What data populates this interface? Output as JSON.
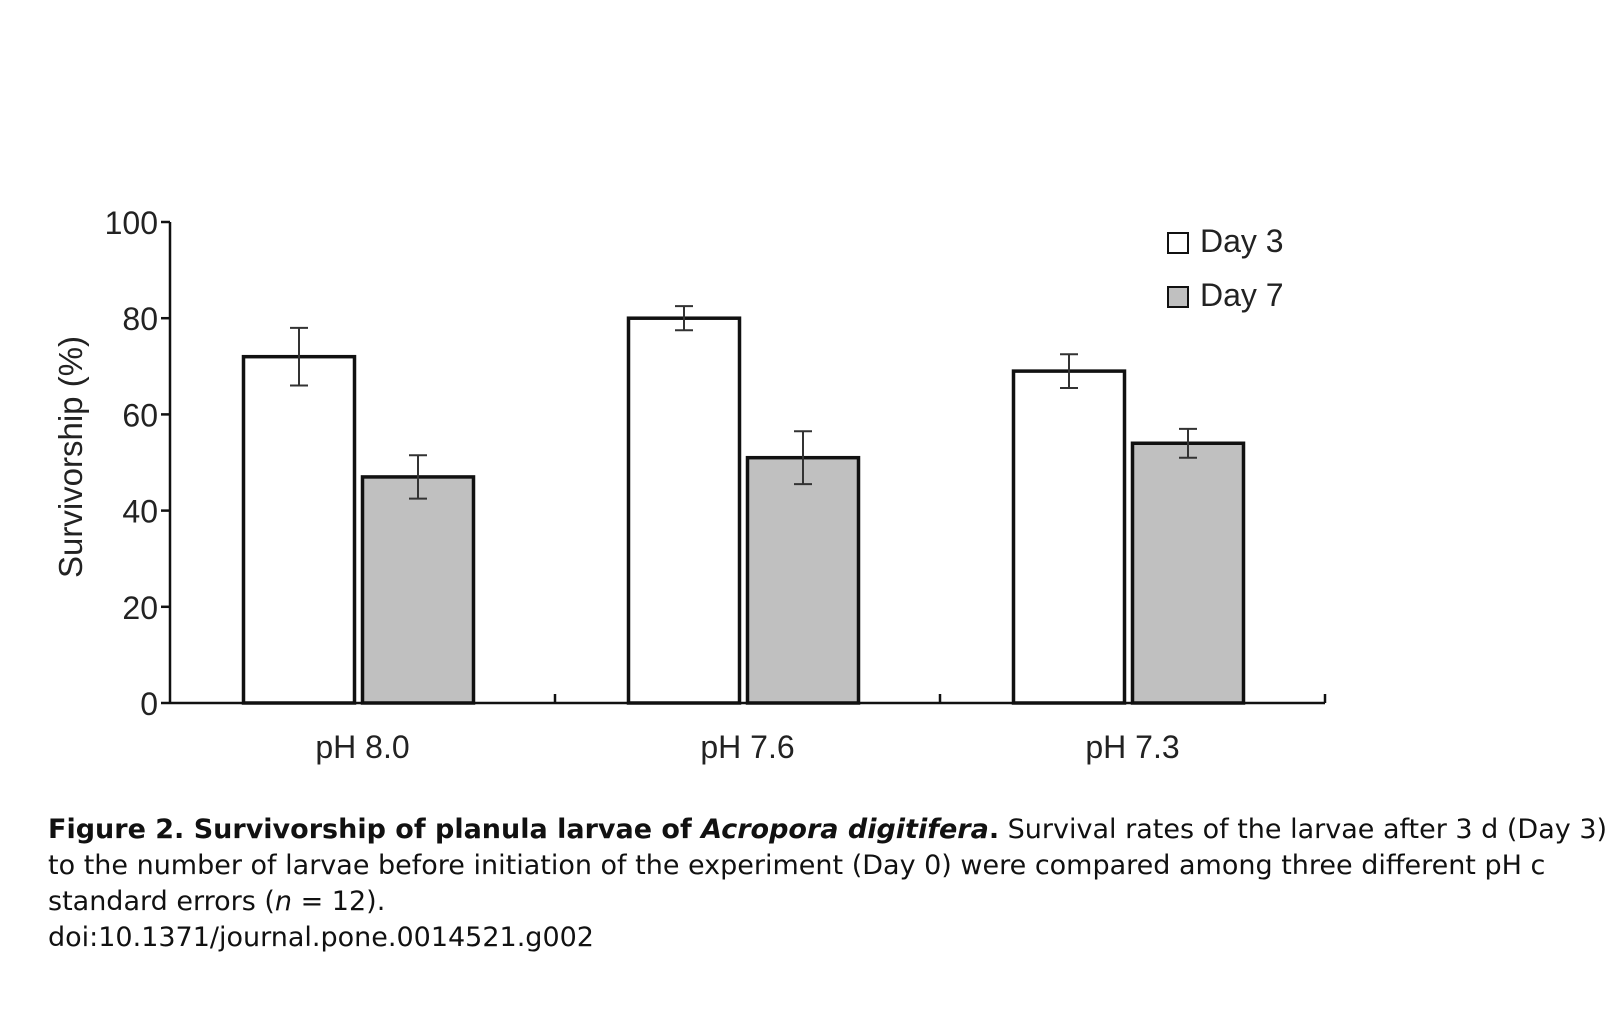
{
  "chart_data": {
    "type": "bar",
    "categories": [
      "pH 8.0",
      "pH 7.6",
      "pH 7.3"
    ],
    "series": [
      {
        "name": "Day 3",
        "values": [
          72,
          80,
          69
        ],
        "errors": [
          6,
          2.5,
          3.5
        ],
        "color": "#ffffff"
      },
      {
        "name": "Day 7",
        "values": [
          47,
          51,
          54
        ],
        "errors": [
          4.5,
          5.5,
          3
        ],
        "color": "#c0c0c0"
      }
    ],
    "ylabel": "Survivorship (%)",
    "xlabel": "",
    "ylim": [
      0,
      100
    ],
    "yticks": [
      "0",
      "20",
      "40",
      "60",
      "80",
      "100"
    ],
    "grid": false,
    "legend_position": "top-right",
    "error_bars": "standard errors"
  },
  "caption": {
    "line1_bold_a": "Figure 2. Survivorship of planula larvae of ",
    "line1_bold_italic": "Acropora digitifera",
    "line1_bold_b": ".",
    "line1_rest": " Survival rates of the larvae after 3 d (Day 3)",
    "line2": "to the number of larvae before initiation of the experiment (Day 0) were compared among three different pH c",
    "line3_a": "standard errors (",
    "line3_italic": "n",
    "line3_b": " = 12).",
    "doi": "doi:10.1371/journal.pone.0014521.g002"
  }
}
